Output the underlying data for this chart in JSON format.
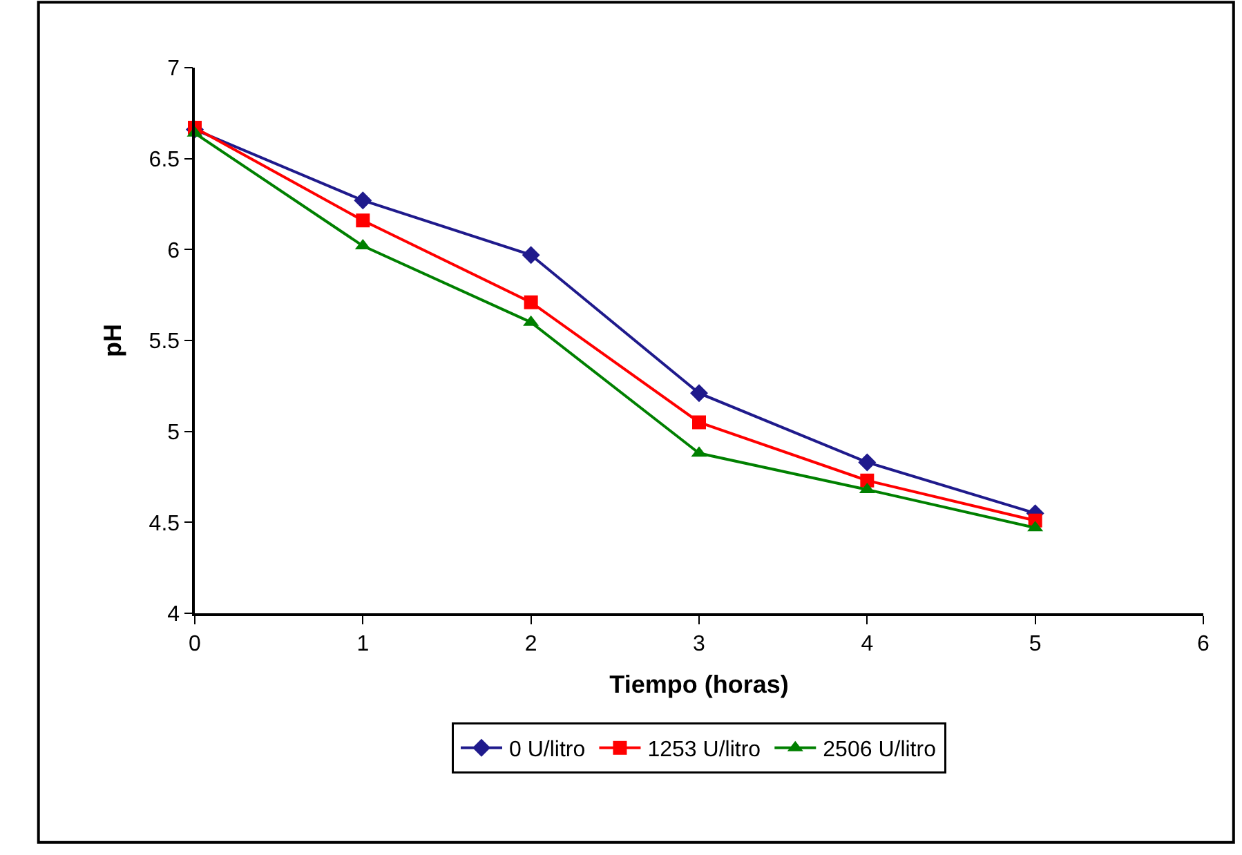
{
  "chart_data": {
    "type": "line",
    "xlabel": "Tiempo (horas)",
    "ylabel": "pH",
    "x": [
      0,
      1,
      2,
      3,
      4,
      5
    ],
    "series": [
      {
        "name": "0 U/litro",
        "color": "#1f1a8c",
        "marker": "diamond",
        "values": [
          6.66,
          6.27,
          5.97,
          5.21,
          4.83,
          4.55
        ]
      },
      {
        "name": "1253 U/litro",
        "color": "#ff0000",
        "marker": "square",
        "values": [
          6.67,
          6.16,
          5.71,
          5.05,
          4.73,
          4.51
        ]
      },
      {
        "name": "2506 U/litro",
        "color": "#008000",
        "marker": "triangle",
        "values": [
          6.64,
          6.02,
          5.6,
          4.88,
          4.68,
          4.47
        ]
      }
    ],
    "xlim": [
      0,
      6
    ],
    "xticks": [
      0,
      1,
      2,
      3,
      4,
      5,
      6
    ],
    "ylim": [
      4,
      7
    ],
    "yticks": [
      4,
      4.5,
      5,
      5.5,
      6,
      6.5,
      7
    ],
    "legend": "bottom"
  }
}
